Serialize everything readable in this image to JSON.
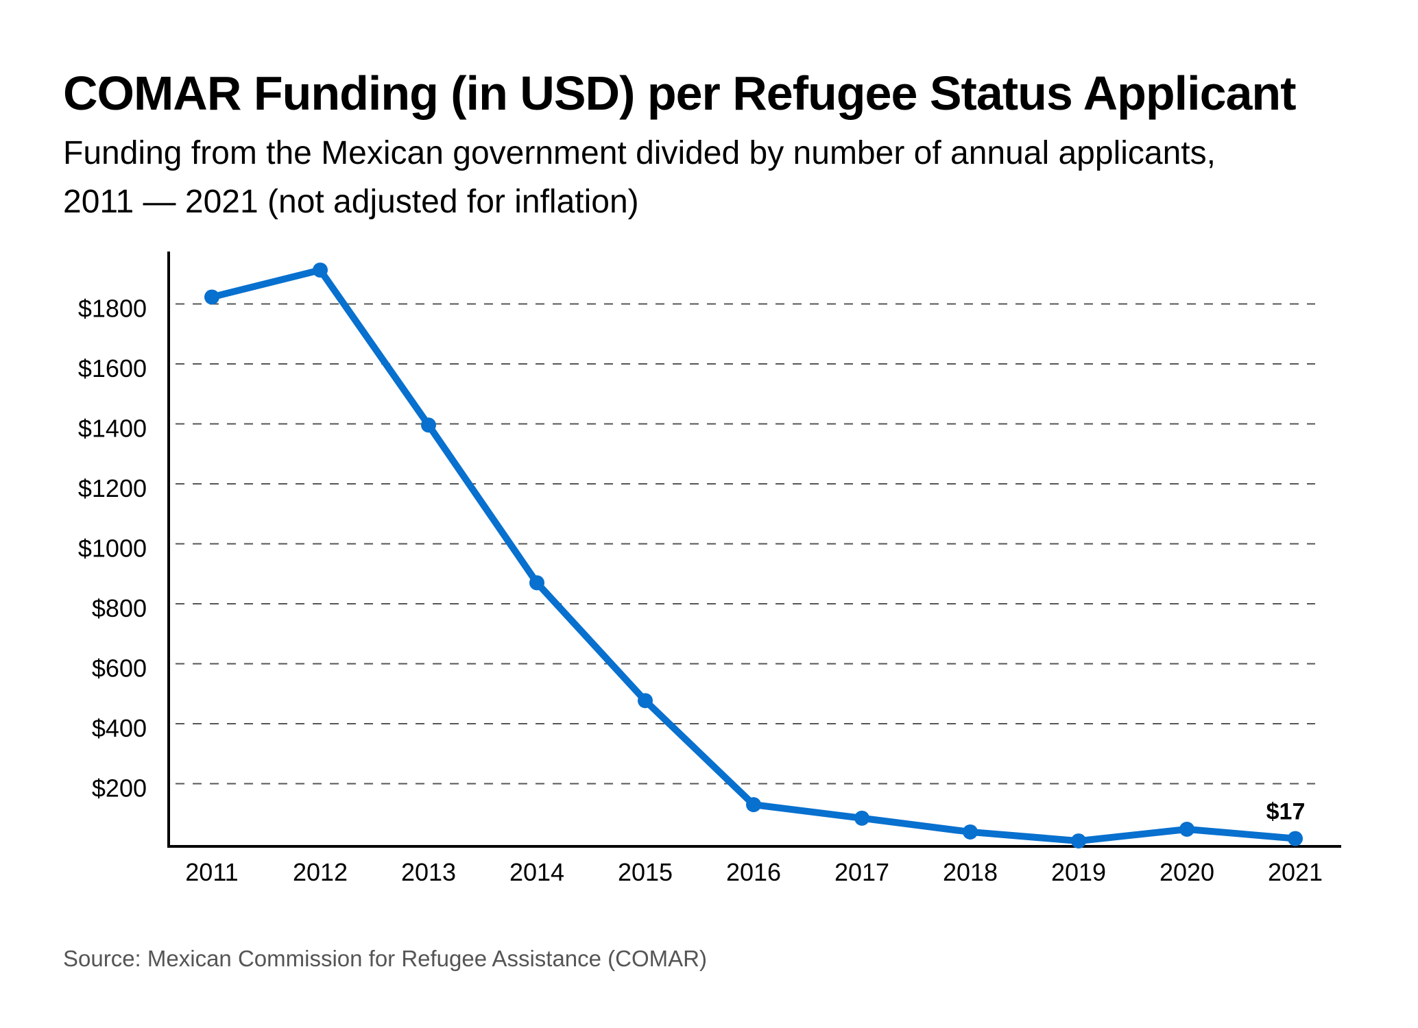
{
  "header": {
    "title": "COMAR Funding (in USD) per Refugee Status Applicant",
    "subtitle_line1": "Funding from the Mexican government divided by number of annual applicants,",
    "subtitle_line2": "2011 — 2021 (not adjusted for inflation)"
  },
  "footer": {
    "source": "Source: Mexican Commission for Refugee Assistance (COMAR)"
  },
  "colors": {
    "series": "#0870CE",
    "grid": "#555555",
    "axis": "#000000",
    "source_text": "#555555"
  },
  "chart_data": {
    "type": "line",
    "title": "COMAR Funding (in USD) per Refugee Status Applicant",
    "subtitle": "Funding from the Mexican government divided by number of annual applicants, 2011 — 2021 (not adjusted for inflation)",
    "xlabel": "",
    "ylabel": "",
    "x": [
      "2011",
      "2012",
      "2013",
      "2014",
      "2015",
      "2016",
      "2017",
      "2018",
      "2019",
      "2020",
      "2021"
    ],
    "series": [
      {
        "name": "COMAR funding per applicant (USD)",
        "values": [
          1823,
          1913,
          1396,
          870,
          477,
          130,
          85,
          39,
          9,
          48,
          17
        ]
      }
    ],
    "ylim": [
      0,
      2000
    ],
    "yticks": [
      200,
      400,
      600,
      800,
      1000,
      1200,
      1400,
      1600,
      1800
    ],
    "ytick_labels": [
      "$200",
      "$400",
      "$600",
      "$800",
      "$1000",
      "$1200",
      "$1400",
      "$1600",
      "$1800"
    ],
    "grid": "horizontal dashed",
    "legend": "none",
    "annotations": [
      {
        "x": "2021",
        "text": "$17"
      }
    ],
    "source": "Source: Mexican Commission for Refugee Assistance (COMAR)"
  }
}
